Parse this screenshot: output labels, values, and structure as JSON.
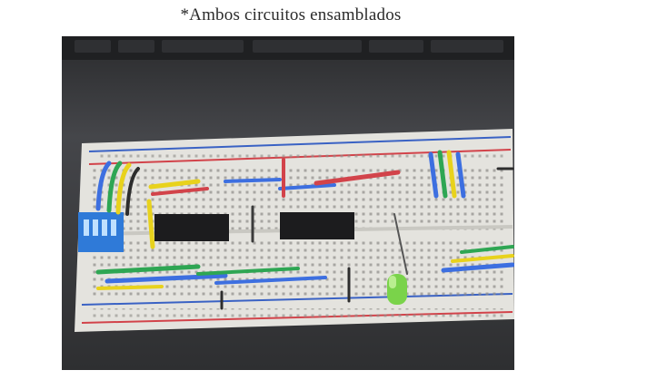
{
  "caption": {
    "text": "*Ambos circuitos ensamblados"
  },
  "photo": {
    "subject": "breadboard-with-assembled-circuits",
    "colors": {
      "background": "#3a3b3d",
      "keyboard": "#2b2c2e",
      "breadboard": "#e4e3de",
      "rail_red": "#d2434a",
      "rail_blue": "#3a62c4",
      "chip": "#1c1c1e",
      "dip_switch": "#2f7ad8",
      "led": "#7ad34a"
    }
  }
}
